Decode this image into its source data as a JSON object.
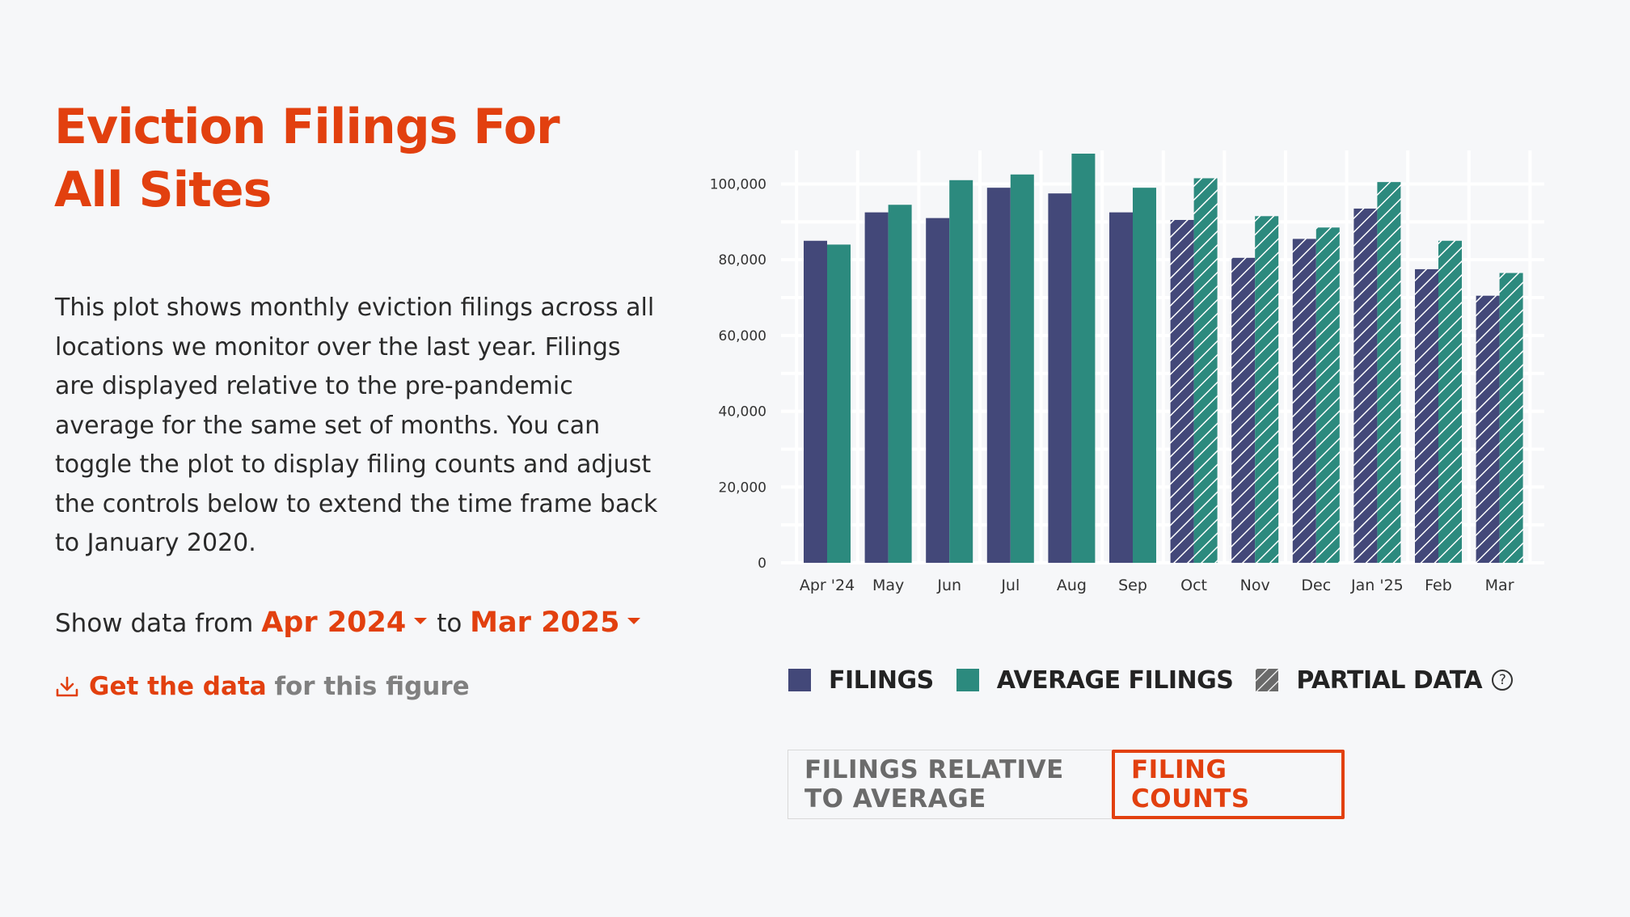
{
  "header": {
    "title": "Eviction Filings For All Sites"
  },
  "description": "This plot shows monthly eviction filings across all locations we monitor over the last year. Filings are displayed relative to the pre-pandemic average for the same set of months. You can toggle the plot to display filing counts and adjust the controls below to extend the time frame back to January 2020.",
  "range": {
    "prefix": "Show data from",
    "from": "Apr 2024",
    "connector": "to",
    "to": "Mar 2025"
  },
  "download": {
    "link_text": "Get the data",
    "suffix": "for this figure",
    "icon": "download-icon"
  },
  "legend": {
    "filings": "FILINGS",
    "average": "AVERAGE FILINGS",
    "partial": "PARTIAL DATA",
    "help_icon": "?"
  },
  "toggle": {
    "relative_label": "FILINGS RELATIVE TO AVERAGE",
    "counts_label": "FILING COUNTS",
    "active": "counts"
  },
  "colors": {
    "accent": "#e2400f",
    "filings": "#434879",
    "average": "#2c8a7e",
    "grid": "#ffffff",
    "background": "#f6f7f9"
  },
  "chart_data": {
    "type": "bar",
    "title": "",
    "xlabel": "",
    "ylabel": "",
    "ylim": [
      0,
      108000
    ],
    "yticks": [
      0,
      20000,
      40000,
      60000,
      80000,
      100000
    ],
    "ytick_labels": [
      "0",
      "20,000",
      "40,000",
      "60,000",
      "80,000",
      "100,000"
    ],
    "categories": [
      "Apr '24",
      "May",
      "Jun",
      "Jul",
      "Aug",
      "Sep",
      "Oct",
      "Nov",
      "Dec",
      "Jan '25",
      "Feb",
      "Mar"
    ],
    "series": [
      {
        "name": "FILINGS",
        "values": [
          85000,
          92500,
          91000,
          99000,
          97500,
          92500,
          90500,
          80500,
          85500,
          93500,
          77500,
          70500
        ]
      },
      {
        "name": "AVERAGE FILINGS",
        "values": [
          84000,
          94500,
          101000,
          102500,
          108000,
          99000,
          101500,
          91500,
          88500,
          100500,
          85000,
          76500
        ]
      }
    ],
    "partial_from_index": 6,
    "grid": true,
    "legend": "bottom"
  }
}
